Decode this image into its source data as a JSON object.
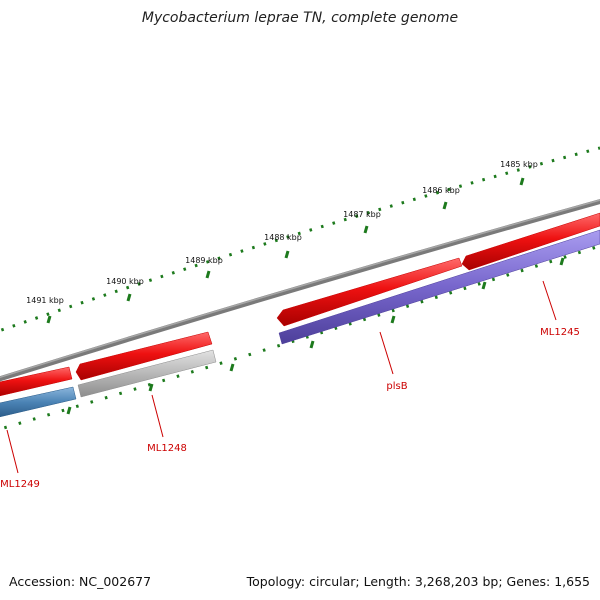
{
  "title": "Mycobacterium leprae TN, complete genome",
  "footer": {
    "accession": "Accession: NC_002677",
    "summary": "Topology: circular; Length: 3,268,203 bp; Genes: 1,655"
  },
  "ruler": {
    "labels": [
      "1485 kbp",
      "1486 kbp",
      "1487 kbp",
      "1488 kbp",
      "1489 kbp",
      "1490 kbp",
      "1491 kbp"
    ]
  },
  "genes": [
    {
      "label": "ML1245",
      "strand": "forward",
      "color": "#ee1111"
    },
    {
      "label": "plsB",
      "strand": "reverse",
      "color": "#7766cc"
    },
    {
      "label": "ML1248",
      "strand": "reverse",
      "color": "#b8b8b8"
    },
    {
      "label": "ML1249",
      "strand": "reverse",
      "color": "#4a82b4"
    }
  ],
  "colors": {
    "backbone": "#7a7a7a",
    "forward_gene": "#ee1111",
    "ticks": "#1d7a1d",
    "label": "#cc0000"
  }
}
